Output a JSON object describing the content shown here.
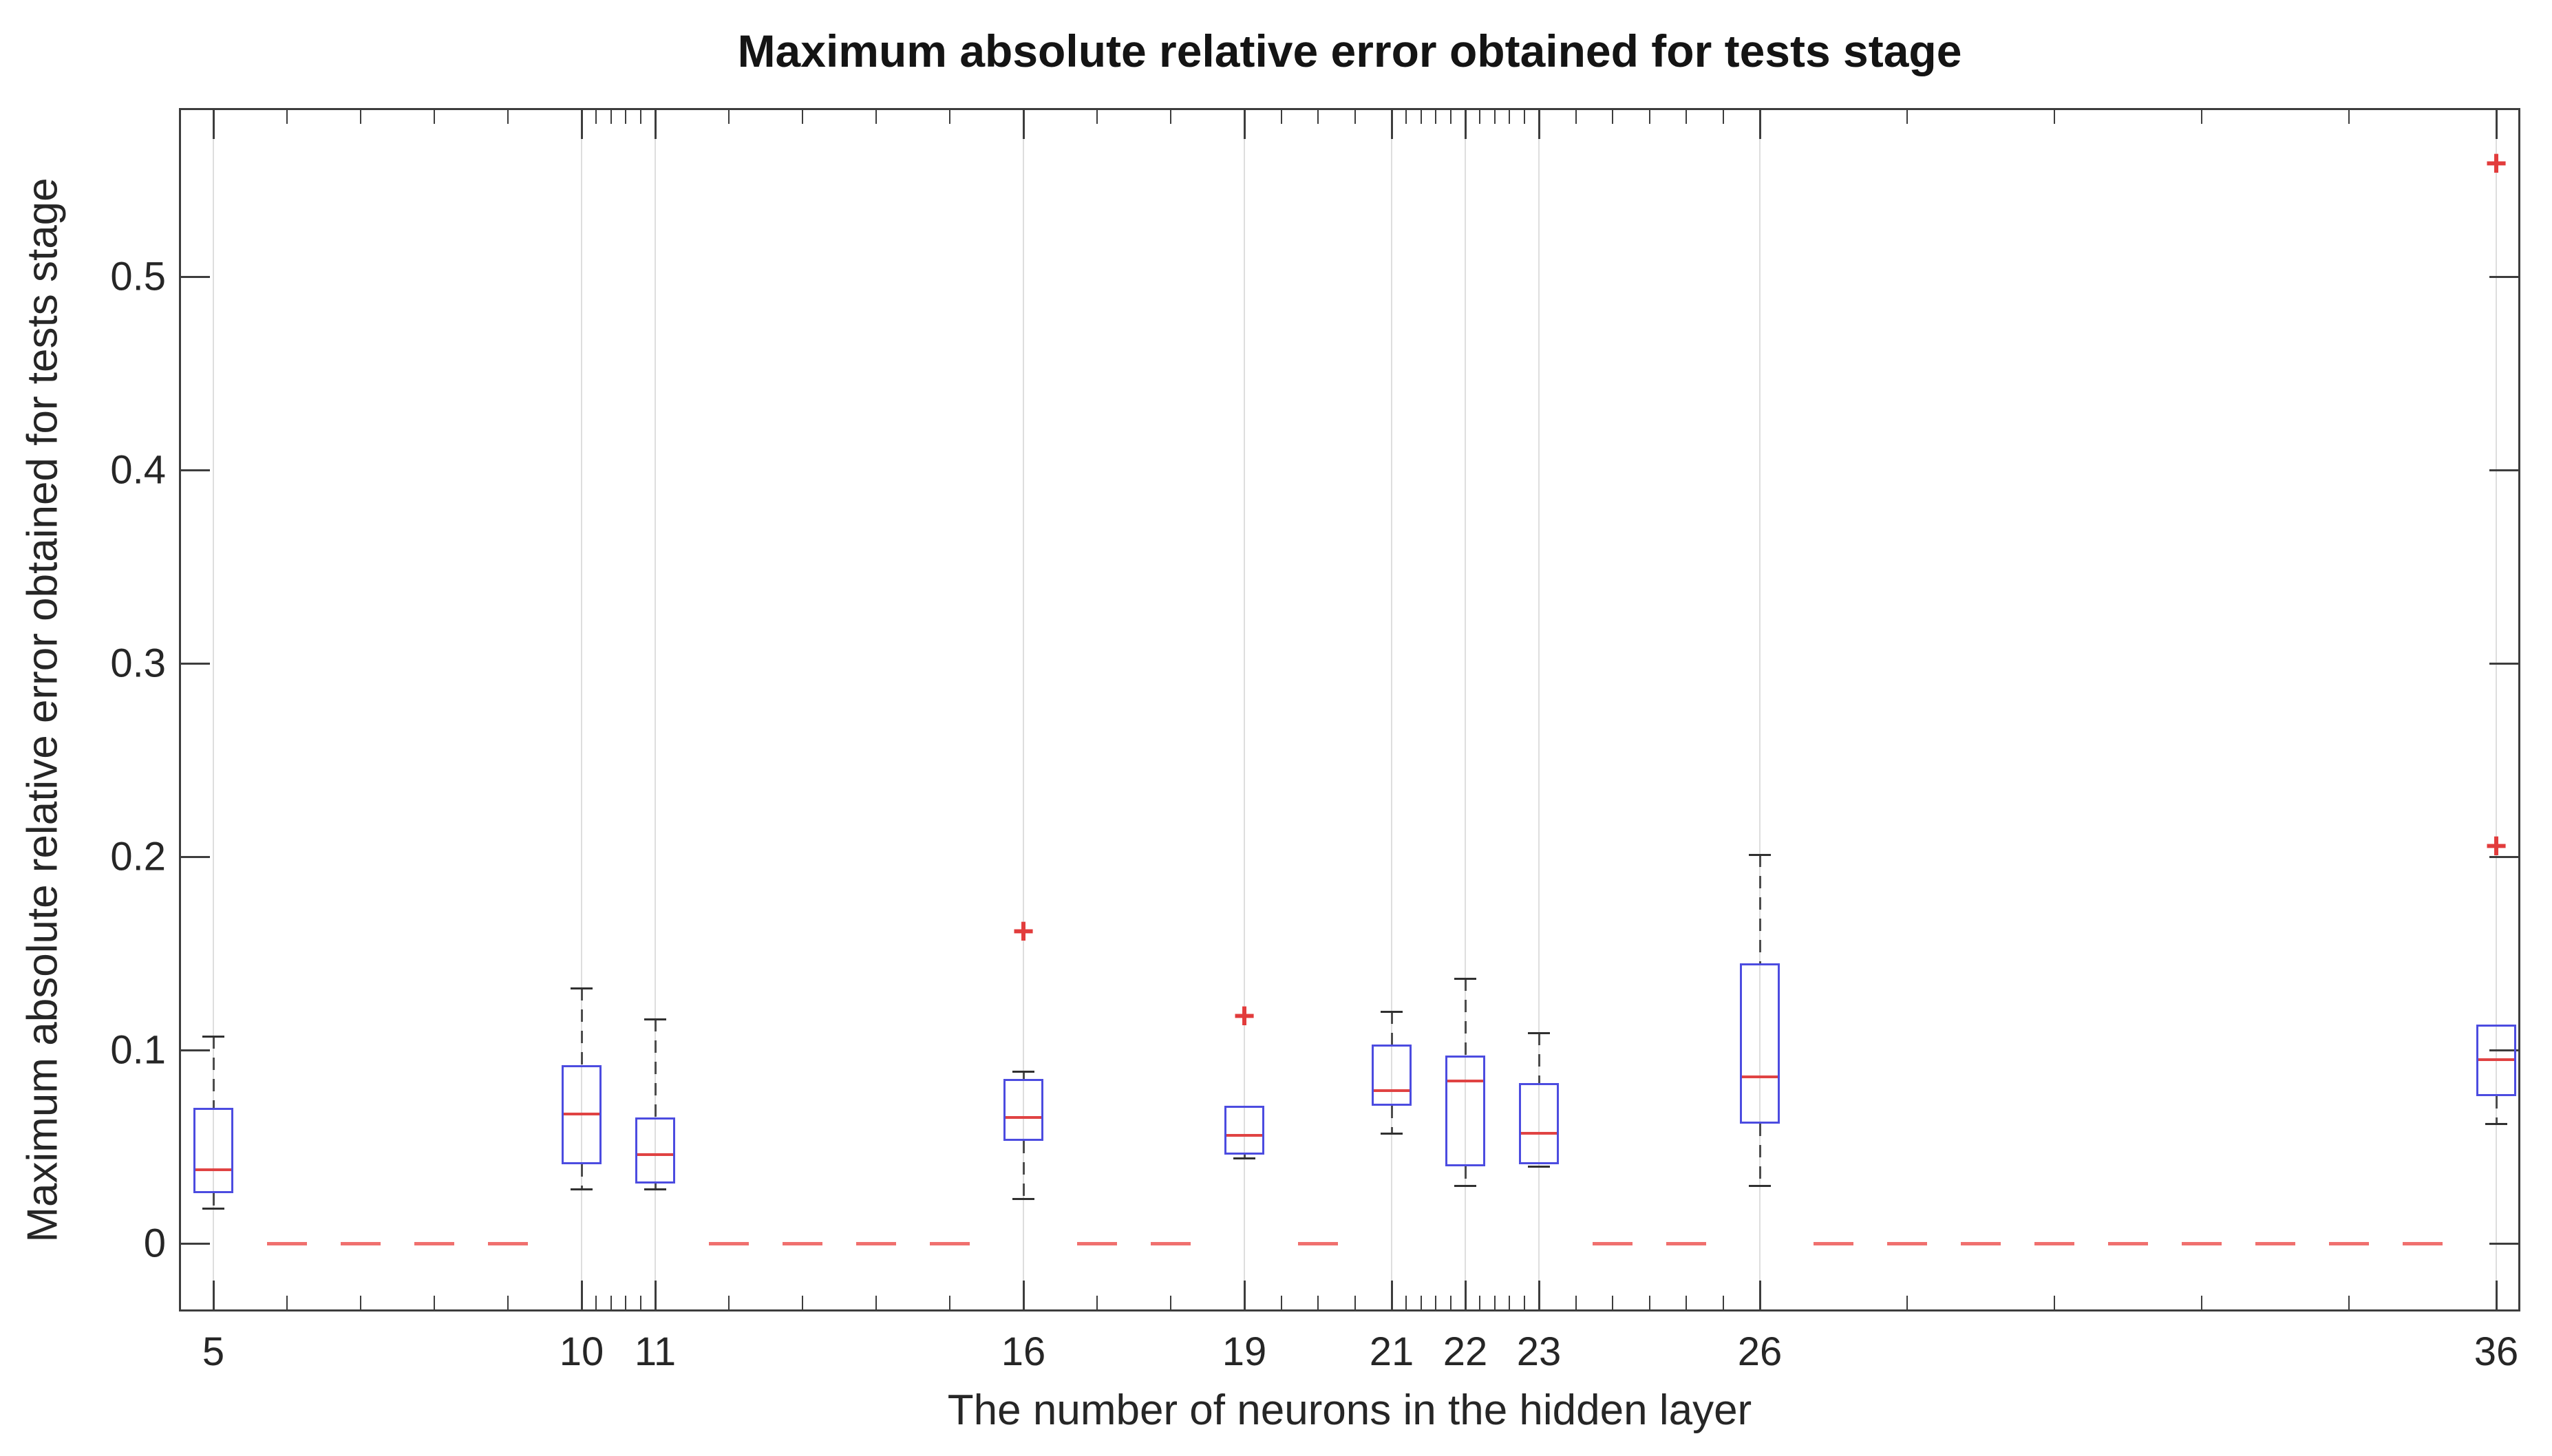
{
  "figure": {
    "title": "Maximum absolute relative error obtained for tests stage",
    "xlabel": "The number of neurons in the hidden layer",
    "ylabel": "Maximum absolute relative error obtained for tests stage"
  },
  "chart_data": {
    "type": "boxplot",
    "title": "Maximum absolute relative error obtained for tests stage",
    "xlabel": "The number of neurons in the hidden layer",
    "ylabel": "Maximum absolute relative error obtained for tests stage",
    "xlim": [
      4.56,
      36.36
    ],
    "ylim": [
      -0.036,
      0.586
    ],
    "x_major_ticks": [
      5,
      10,
      11,
      16,
      19,
      21,
      22,
      23,
      26,
      36
    ],
    "x_major_tick_labels": [
      "5",
      "10",
      "11",
      "16",
      "19",
      "21",
      "22",
      "23",
      "26",
      "36"
    ],
    "x_minor_ticks": [
      6,
      7,
      8,
      9,
      10.2,
      10.4,
      10.6,
      10.8,
      12,
      13,
      14,
      15,
      17,
      18,
      19.5,
      20,
      20.5,
      21.2,
      21.4,
      21.6,
      21.8,
      22.2,
      22.4,
      22.6,
      22.8,
      23.5,
      24,
      24.5,
      25,
      25.5,
      28,
      30,
      32,
      34
    ],
    "y_ticks": [
      0,
      0.1,
      0.2,
      0.3,
      0.4,
      0.5
    ],
    "y_tick_labels": [
      "0",
      "0.1",
      "0.2",
      "0.3",
      "0.4",
      "0.5"
    ],
    "grid": "vertical-lines-at-major-x-ticks",
    "legend": "none",
    "boxes": [
      {
        "x": 5,
        "whisker_low": 0.018,
        "q1": 0.026,
        "median": 0.038,
        "q3": 0.07,
        "whisker_high": 0.107,
        "outliers": []
      },
      {
        "x": 10,
        "whisker_low": 0.028,
        "q1": 0.041,
        "median": 0.067,
        "q3": 0.092,
        "whisker_high": 0.132,
        "outliers": []
      },
      {
        "x": 11,
        "whisker_low": 0.028,
        "q1": 0.031,
        "median": 0.046,
        "q3": 0.065,
        "whisker_high": 0.116,
        "outliers": []
      },
      {
        "x": 16,
        "whisker_low": 0.023,
        "q1": 0.053,
        "median": 0.065,
        "q3": 0.085,
        "whisker_high": 0.089,
        "outliers": [
          0.161
        ]
      },
      {
        "x": 19,
        "whisker_low": 0.044,
        "q1": 0.046,
        "median": 0.056,
        "q3": 0.071,
        "whisker_high": 0.071,
        "outliers": [
          0.117
        ]
      },
      {
        "x": 21,
        "whisker_low": 0.057,
        "q1": 0.071,
        "median": 0.079,
        "q3": 0.103,
        "whisker_high": 0.12,
        "outliers": []
      },
      {
        "x": 22,
        "whisker_low": 0.03,
        "q1": 0.04,
        "median": 0.084,
        "q3": 0.097,
        "whisker_high": 0.137,
        "outliers": []
      },
      {
        "x": 23,
        "whisker_low": 0.04,
        "q1": 0.041,
        "median": 0.057,
        "q3": 0.083,
        "whisker_high": 0.109,
        "outliers": []
      },
      {
        "x": 26,
        "whisker_low": 0.03,
        "q1": 0.062,
        "median": 0.086,
        "q3": 0.145,
        "whisker_high": 0.201,
        "outliers": []
      },
      {
        "x": 36,
        "whisker_low": 0.062,
        "q1": 0.076,
        "median": 0.095,
        "q3": 0.113,
        "whisker_high": 0.113,
        "outliers": [
          0.205,
          0.558
        ]
      }
    ],
    "zero_value_positions": [
      6,
      7,
      8,
      9,
      12,
      13,
      14,
      15,
      17,
      18,
      20,
      24,
      25,
      27,
      28,
      29,
      30,
      31,
      32,
      33,
      34,
      35
    ],
    "outlier_marker": "+",
    "colors": {
      "box_edge": "#4c4ce0",
      "median_line": "#e04343",
      "zero_dash": "#f0706e",
      "whisker": "#4d4d4d",
      "whisker_cap": "#303030",
      "outlier": "#e23c3c",
      "gridline": "#dedede",
      "axis": "#3d3d3d",
      "background": "#ffffff"
    }
  }
}
